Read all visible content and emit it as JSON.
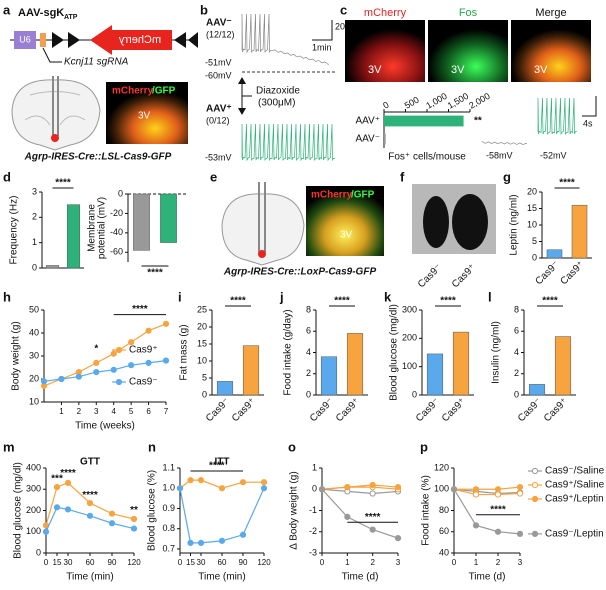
{
  "figure": {
    "a": {
      "label": "a",
      "construct": "AAV-sgK",
      "construct_sub": "ATP",
      "promoter": "U6",
      "reporter": "mCherry",
      "sgrna": "Kcnj11 sgRNA",
      "image_label_1": "mCherry",
      "image_label_2": "/GFP",
      "region": "3V",
      "genotype": "Agrp-IRES-Cre::LSL-Cas9-GFP"
    },
    "b": {
      "label": "b",
      "top": "AAV⁻",
      "top_n": "(12/12)",
      "scale_v": "20mV",
      "scale_t": "1min",
      "v1": "-51mV",
      "v2": "-60mV",
      "drug": "Diazoxide",
      "dose": "(300μM)",
      "bottom": "AAV⁺",
      "bottom_n": "(0/12)",
      "v3": "-53mV"
    },
    "c": {
      "label": "c",
      "images": [
        "mCherry",
        "Fos",
        "Merge"
      ],
      "region": "3V",
      "v1": "-58mV",
      "v2": "-52mV",
      "scale_t": "4s"
    },
    "e": {
      "label": "e",
      "image_label_1": "mCherry",
      "image_label_2": "/GFP",
      "region": "3V",
      "genotype": "Agrp-IRES-Cre::LoxP-Cas9-GFP"
    },
    "f": {
      "label": "f",
      "mice": [
        "Cas9⁻",
        "Cas9⁺"
      ]
    }
  },
  "chart_data": [
    {
      "type": "bar",
      "orientation": "horizontal",
      "categories": [
        "AAV⁺",
        "AAV⁻"
      ],
      "values": [
        1850,
        40
      ],
      "colors": [
        "#2db37a",
        "#999999"
      ],
      "xlim": [
        0,
        2000
      ],
      "xticks": [
        0,
        500,
        {
          "value": 1000,
          "label": "1,000"
        },
        {
          "value": 1500,
          "label": "1,500"
        },
        {
          "value": 2000,
          "label": "2,000"
        }
      ],
      "xlabel": "Fos⁺ cells/mouse",
      "annotations": [
        "**"
      ]
    },
    {
      "type": "bar",
      "label": "d",
      "ylabel": "Frequency (Hz)",
      "categories": [
        null,
        null
      ],
      "values": [
        0.1,
        2.5
      ],
      "colors": [
        "#999999",
        "#2db37a"
      ],
      "ylim": [
        0,
        3
      ],
      "yticks": [
        0,
        1,
        2,
        3
      ],
      "annotations": [
        "****"
      ]
    },
    {
      "type": "bar",
      "ylabel": [
        "Membrane",
        "potential (mV)"
      ],
      "categories": [
        null,
        null
      ],
      "values": [
        -58,
        -50
      ],
      "colors": [
        "#999999",
        "#2db37a"
      ],
      "ylim": [
        -70,
        0
      ],
      "yticks": [
        -60,
        -40,
        -20,
        0
      ],
      "baseline": "dashed",
      "annotations": [
        "****"
      ]
    },
    {
      "type": "bar",
      "label": "g",
      "ylabel": "Leptin (ng/ml)",
      "categories": [
        "Cas9⁻",
        "Cas9⁺"
      ],
      "values": [
        2.5,
        16
      ],
      "colors": [
        "#5aa9ec",
        "#f7a440"
      ],
      "ylim": [
        0,
        20
      ],
      "yticks": [
        0,
        5,
        10,
        15,
        20
      ],
      "annotations": [
        "****"
      ]
    },
    {
      "type": "line",
      "label": "h",
      "ylabel": "Body weight (g)",
      "xlabel": "Time (weeks)",
      "x": [
        0,
        1,
        2,
        3,
        4,
        5,
        6,
        7
      ],
      "xlim": [
        0,
        7
      ],
      "xticks": [
        1,
        2,
        3,
        4,
        5,
        6,
        7
      ],
      "ylim": [
        10,
        50
      ],
      "yticks": [
        10,
        20,
        30,
        40,
        50
      ],
      "legend": "inside",
      "series": [
        {
          "name": "Cas9⁺",
          "color": "#f7a440",
          "marker": "filled",
          "values": [
            17,
            20,
            23,
            27,
            31,
            36,
            41,
            44
          ]
        },
        {
          "name": "Cas9⁻",
          "color": "#5aa9ec",
          "marker": "filled",
          "values": [
            19,
            20,
            21,
            23,
            24,
            26,
            27,
            28
          ]
        }
      ],
      "annotations": [
        "*",
        "****"
      ]
    },
    {
      "type": "bar",
      "label": "i",
      "ylabel": "Fat mass (g)",
      "categories": [
        "Cas9⁻",
        "Cas9⁺"
      ],
      "values": [
        4,
        14.5
      ],
      "colors": [
        "#5aa9ec",
        "#f7a440"
      ],
      "ylim": [
        0,
        25
      ],
      "yticks": [
        0,
        5,
        10,
        15,
        20,
        25
      ],
      "annotations": [
        "****"
      ]
    },
    {
      "type": "bar",
      "label": "j",
      "ylabel": "Food intake (g/day)",
      "categories": [
        "Cas9⁻",
        "Cas9⁺"
      ],
      "values": [
        3.6,
        5.8
      ],
      "colors": [
        "#5aa9ec",
        "#f7a440"
      ],
      "ylim": [
        0,
        8
      ],
      "yticks": [
        0,
        2,
        4,
        6,
        8
      ],
      "annotations": [
        "****"
      ]
    },
    {
      "type": "bar",
      "label": "k",
      "ylabel": "Blood glucose (mg/dl)",
      "categories": [
        "Cas9⁻",
        "Cas9⁺"
      ],
      "values": [
        145,
        222
      ],
      "colors": [
        "#5aa9ec",
        "#f7a440"
      ],
      "ylim": [
        0,
        300
      ],
      "yticks": [
        0,
        100,
        200,
        300
      ],
      "annotations": [
        "****"
      ]
    },
    {
      "type": "bar",
      "label": "l",
      "ylabel": "Insulin (ng/ml)",
      "categories": [
        "Cas9⁻",
        "Cas9⁺"
      ],
      "values": [
        1.0,
        5.5
      ],
      "colors": [
        "#5aa9ec",
        "#f7a440"
      ],
      "ylim": [
        0,
        8
      ],
      "yticks": [
        0,
        2,
        4,
        6,
        8
      ],
      "annotations": [
        "****"
      ]
    },
    {
      "type": "line",
      "label": "m",
      "title": "GTT",
      "ylabel": "Blood glucose (mg/dl)",
      "xlabel": "Time (min)",
      "x": [
        0,
        15,
        30,
        60,
        90,
        120
      ],
      "xlim": [
        0,
        120
      ],
      "xticks": [
        0,
        15,
        30,
        60,
        90,
        120
      ],
      "ylim": [
        0,
        400
      ],
      "yticks": [
        0,
        100,
        200,
        300,
        400
      ],
      "series": [
        {
          "color": "#f7a440",
          "marker": "filled",
          "values": [
            130,
            310,
            330,
            235,
            185,
            160
          ]
        },
        {
          "color": "#5aa9ec",
          "marker": "filled",
          "values": [
            100,
            215,
            205,
            175,
            140,
            115
          ]
        }
      ],
      "annotations": [
        "***",
        "****",
        "****",
        "**"
      ]
    },
    {
      "type": "line",
      "label": "n",
      "title": "ITT",
      "ylabel": "Blood glucose (%)",
      "xlabel": "Time (min)",
      "x": [
        0,
        15,
        30,
        60,
        90,
        120
      ],
      "xlim": [
        0,
        120
      ],
      "xticks": [
        0,
        15,
        30,
        60,
        90,
        120
      ],
      "ylim": [
        0.68,
        1.1
      ],
      "yticks": [
        0.7,
        0.8,
        0.9,
        {
          "value": 1,
          "label": "1.0"
        },
        1.1
      ],
      "series": [
        {
          "color": "#f7a440",
          "marker": "filled",
          "values": [
            1.0,
            1.04,
            1.04,
            1.0,
            1.03,
            1.03
          ]
        },
        {
          "color": "#5aa9ec",
          "marker": "filled",
          "values": [
            1.0,
            0.73,
            0.73,
            0.74,
            0.77,
            1.0
          ]
        }
      ],
      "annotations": [
        "****"
      ]
    },
    {
      "type": "line",
      "label": "o",
      "ylabel": "Δ Body weight (g)",
      "xlabel": "Time (d)",
      "x": [
        0,
        1,
        2,
        3
      ],
      "xlim": [
        0,
        3
      ],
      "xticks": [
        0,
        1,
        2,
        3
      ],
      "ylim": [
        -3,
        1
      ],
      "yticks": [
        -3,
        -2,
        -1,
        0,
        1
      ],
      "series": [
        {
          "color": "#999999",
          "marker": "open",
          "values": [
            0,
            -0.1,
            -0.2,
            -0.1
          ]
        },
        {
          "color": "#f7a440",
          "marker": "open",
          "values": [
            0,
            0.1,
            0.1,
            0
          ]
        },
        {
          "color": "#f7a440",
          "marker": "filled",
          "values": [
            0,
            0.1,
            0.2,
            0.1
          ]
        },
        {
          "color": "#999999",
          "marker": "filled",
          "values": [
            0,
            -1.3,
            -1.9,
            -2.3
          ]
        }
      ],
      "annotations": [
        "****"
      ]
    },
    {
      "type": "line",
      "label": "p",
      "ylabel": "Food intake (%)",
      "xlabel": "Time (d)",
      "x": [
        0,
        1,
        2,
        3
      ],
      "xlim": [
        0,
        3
      ],
      "xticks": [
        0,
        1,
        2,
        3
      ],
      "ylim": [
        40,
        120
      ],
      "yticks": [
        40,
        60,
        80,
        100,
        120
      ],
      "legend": "right",
      "series": [
        {
          "name": "Cas9⁻/Saline",
          "color": "#999999",
          "marker": "open",
          "values": [
            100,
            98,
            96,
            97
          ]
        },
        {
          "name": "Cas9⁺/Saline",
          "color": "#f7a440",
          "marker": "open",
          "values": [
            100,
            95,
            95,
            96
          ]
        },
        {
          "name": "Cas9⁺/Leptin",
          "color": "#f7a440",
          "marker": "filled",
          "values": [
            100,
            100,
            100,
            102
          ]
        },
        {
          "name": "Cas9⁻/Leptin",
          "color": "#999999",
          "marker": "filled",
          "values": [
            100,
            66,
            60,
            58
          ]
        }
      ],
      "annotations": [
        "****"
      ]
    }
  ]
}
